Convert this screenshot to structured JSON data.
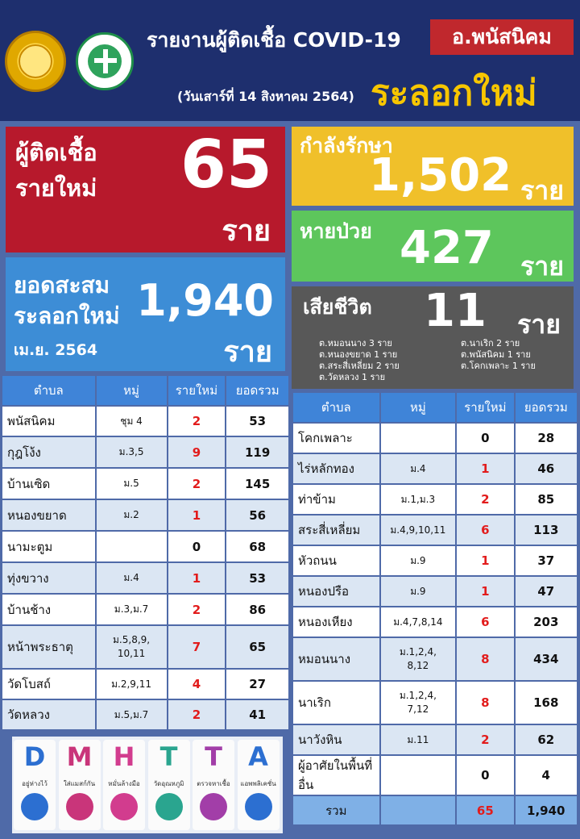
{
  "header": {
    "title": "รายงานผู้ติดเชื้อ COVID-19",
    "district": "อ.พนัสนิคม",
    "date": "(วันเสาร์ที่ 14 สิงหาคม 2564)",
    "subtitle": "ระลอกใหม่"
  },
  "new_cases": {
    "label_line1": "ผู้ติดเชื้อ",
    "label_line2": "รายใหม่",
    "value": "65",
    "unit": "ราย"
  },
  "cumulative": {
    "label_line1": "ยอดสะสม",
    "label_line2": "ระลอกใหม่",
    "label_line3": "เม.ย. 2564",
    "value": "1,940",
    "unit": "ราย"
  },
  "treating": {
    "label": "กำลังรักษา",
    "value": "1,502",
    "unit": "ราย"
  },
  "recovered": {
    "label": "หายป่วย",
    "value": "427",
    "unit": "ราย"
  },
  "deaths": {
    "label": "เสียชีวิต",
    "value": "11",
    "unit": "ราย",
    "breakdown_left": [
      "ต.หมอนนาง 3 ราย",
      "ต.หนองขยาด 1 ราย",
      "ต.สระสี่เหลี่ยม 2 ราย",
      "ต.วัดหลวง 1 ราย"
    ],
    "breakdown_right": [
      "ต.นาเริก 2 ราย",
      "ต.พนัสนิคม 1 ราย",
      "ต.โคกเพลาะ 1 ราย"
    ]
  },
  "table_headers": {
    "tambon": "ตำบล",
    "moo": "หมู่",
    "new": "รายใหม่",
    "total": "ยอดรวม"
  },
  "left_table": [
    {
      "tambon": "พนัสนิคม",
      "moo": "ชุม 4",
      "new": "2",
      "total": "53"
    },
    {
      "tambon": "กุฎโง้ง",
      "moo": "ม.3,5",
      "new": "9",
      "total": "119"
    },
    {
      "tambon": "บ้านเซิด",
      "moo": "ม.5",
      "new": "2",
      "total": "145"
    },
    {
      "tambon": "หนองขยาด",
      "moo": "ม.2",
      "new": "1",
      "total": "56"
    },
    {
      "tambon": "นามะตูม",
      "moo": "",
      "new": "0",
      "total": "68"
    },
    {
      "tambon": "ทุ่งขวาง",
      "moo": "ม.4",
      "new": "1",
      "total": "53"
    },
    {
      "tambon": "บ้านช้าง",
      "moo": "ม.3,ม.7",
      "new": "2",
      "total": "86"
    },
    {
      "tambon": "หน้าพระธาตุ",
      "moo": "ม.5,8,9,\n10,11",
      "new": "7",
      "total": "65"
    },
    {
      "tambon": "วัดโบสถ์",
      "moo": "ม.2,9,11",
      "new": "4",
      "total": "27"
    },
    {
      "tambon": "วัดหลวง",
      "moo": "ม.5,ม.7",
      "new": "2",
      "total": "41"
    }
  ],
  "right_table": [
    {
      "tambon": "โคกเพลาะ",
      "moo": "",
      "new": "0",
      "total": "28"
    },
    {
      "tambon": "ไร่หลักทอง",
      "moo": "ม.4",
      "new": "1",
      "total": "46"
    },
    {
      "tambon": "ท่าข้าม",
      "moo": "ม.1,ม.3",
      "new": "2",
      "total": "85"
    },
    {
      "tambon": "สระสี่เหลี่ยม",
      "moo": "ม.4,9,10,11",
      "new": "6",
      "total": "113"
    },
    {
      "tambon": "หัวถนน",
      "moo": "ม.9",
      "new": "1",
      "total": "37"
    },
    {
      "tambon": "หนองปรือ",
      "moo": "ม.9",
      "new": "1",
      "total": "47"
    },
    {
      "tambon": "หนองเหียง",
      "moo": "ม.4,7,8,14",
      "new": "6",
      "total": "203"
    },
    {
      "tambon": "หมอนนาง",
      "moo": "ม.1,2,4,\n8,12",
      "new": "8",
      "total": "434"
    },
    {
      "tambon": "นาเริก",
      "moo": "ม.1,2,4,\n7,12",
      "new": "8",
      "total": "168"
    },
    {
      "tambon": "นาวังหิน",
      "moo": "ม.11",
      "new": "2",
      "total": "62"
    },
    {
      "tambon": "ผู้อาศัยในพื้นที่อื่น",
      "moo": "",
      "new": "0",
      "total": "4"
    }
  ],
  "total_row": {
    "label": "รวม",
    "new": "65",
    "total": "1,940"
  },
  "dmhtta": [
    {
      "letter": "D",
      "caption": "อยู่ห่างไว้",
      "color": "#2c6fd1",
      "icon": "distance-icon"
    },
    {
      "letter": "M",
      "caption": "ใส่แมสก์กัน",
      "color": "#c9357a",
      "icon": "mask-icon"
    },
    {
      "letter": "H",
      "caption": "หมั่นล้างมือ",
      "color": "#d23c8e",
      "icon": "handwash-icon"
    },
    {
      "letter": "T",
      "caption": "วัดอุณหภูมิ",
      "color": "#2aa58f",
      "icon": "thermometer-icon"
    },
    {
      "letter": "T",
      "caption": "ตรวจหาเชื้อ",
      "color": "#a23ea8",
      "icon": "test-icon"
    },
    {
      "letter": "A",
      "caption": "แอพพลิเคชั่น",
      "color": "#2c6fd1",
      "icon": "app-icon"
    }
  ]
}
